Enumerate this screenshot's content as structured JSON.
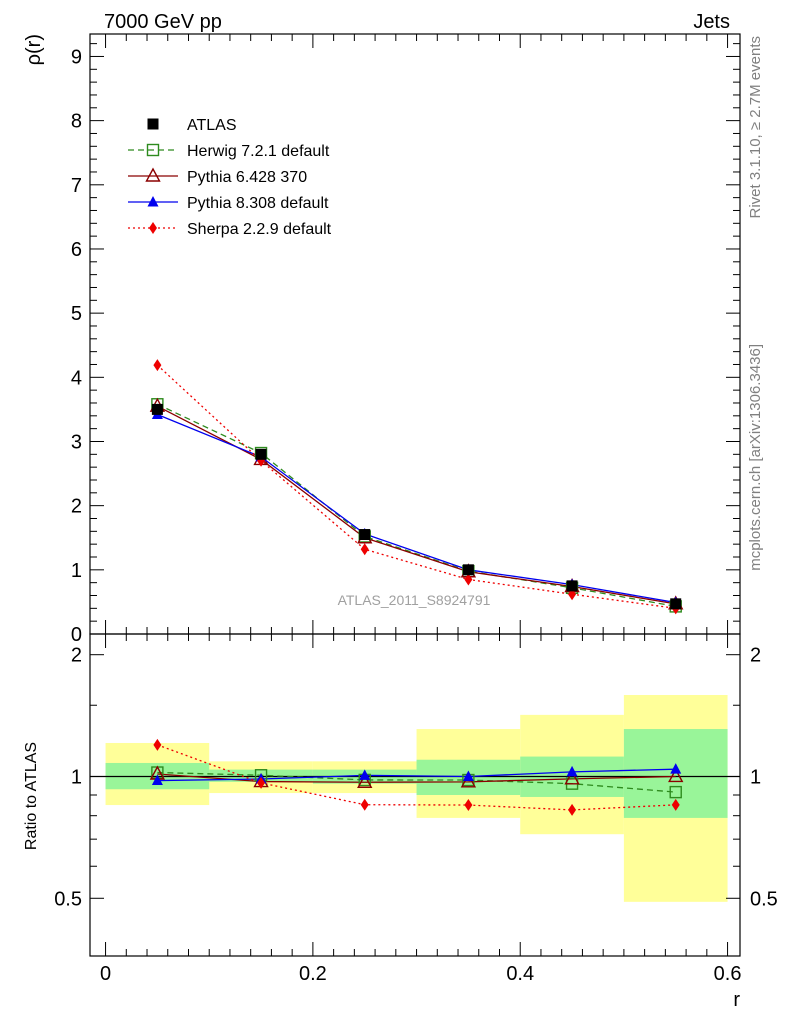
{
  "header": {
    "left": "7000 GeV pp",
    "right": "Jets"
  },
  "side_text": {
    "top": "Rivet 3.1.10, ≥ 2.7M events",
    "bottom": "mcplots.cern.ch [arXiv:1306.3436]"
  },
  "watermark": "ATLAS_2011_S8924791",
  "chart_data": {
    "type": "line",
    "top_panel": {
      "ylabel": "ρ(r)",
      "ylim": [
        0,
        9.35
      ],
      "yticks": [
        0,
        1,
        2,
        3,
        4,
        5,
        6,
        7,
        8,
        9
      ]
    },
    "ratio_panel": {
      "ylabel": "Ratio to ATLAS",
      "ylim": [
        0.36,
        2.25
      ],
      "yticks": [
        0.5,
        1,
        2
      ],
      "yscale": "log",
      "band_inner": [
        [
          0.93,
          1.08
        ],
        [
          0.97,
          1.04
        ],
        [
          0.96,
          1.04
        ],
        [
          0.9,
          1.1
        ],
        [
          0.89,
          1.12
        ],
        [
          0.79,
          1.31
        ]
      ],
      "band_outer": [
        [
          0.85,
          1.21
        ],
        [
          0.91,
          1.09
        ],
        [
          0.91,
          1.09
        ],
        [
          0.79,
          1.31
        ],
        [
          0.72,
          1.42
        ],
        [
          0.49,
          1.59
        ]
      ]
    },
    "xlabel": "r",
    "xlim": [
      -0.015,
      0.612
    ],
    "xticks": [
      0,
      0.2,
      0.4,
      0.6
    ],
    "x": [
      0.05,
      0.15,
      0.25,
      0.35,
      0.45,
      0.55
    ],
    "x_edges": [
      0,
      0.1,
      0.2,
      0.3,
      0.4,
      0.5,
      0.6
    ],
    "data": {
      "name": "ATLAS",
      "values": [
        3.5,
        2.8,
        1.55,
        1.0,
        0.75,
        0.47
      ]
    },
    "series": [
      {
        "name": "Herwig 7.2.1 default",
        "color": "#2e8b1e",
        "dash": "6,4",
        "marker": "open-square",
        "values": [
          3.58,
          2.82,
          1.52,
          0.98,
          0.72,
          0.43
        ]
      },
      {
        "name": "Pythia 6.428 370",
        "color": "#8b0000",
        "dash": "",
        "marker": "open-triangle",
        "values": [
          3.55,
          2.72,
          1.5,
          0.97,
          0.74,
          0.47
        ]
      },
      {
        "name": "Pythia 8.308 default",
        "color": "#0000ee",
        "dash": "",
        "marker": "filled-triangle",
        "values": [
          3.42,
          2.76,
          1.56,
          1.0,
          0.77,
          0.49
        ]
      },
      {
        "name": "Sherpa 2.2.9 default",
        "color": "#ee0000",
        "dash": "2,3",
        "marker": "filled-diamond",
        "values": [
          4.19,
          2.7,
          1.32,
          0.85,
          0.62,
          0.4
        ]
      }
    ],
    "legend_position": "top-left",
    "legend_entries": [
      {
        "name": "ATLAS",
        "color": "#000000",
        "marker": "filled-square",
        "dash": "none"
      },
      {
        "name": "Herwig 7.2.1 default",
        "color": "#2e8b1e",
        "marker": "open-square",
        "dash": "6,4"
      },
      {
        "name": "Pythia 6.428 370",
        "color": "#8b0000",
        "marker": "open-triangle",
        "dash": ""
      },
      {
        "name": "Pythia 8.308 default",
        "color": "#0000ee",
        "marker": "filled-triangle",
        "dash": ""
      },
      {
        "name": "Sherpa 2.2.9 default",
        "color": "#ee0000",
        "marker": "filled-diamond",
        "dash": "2,3"
      }
    ],
    "band_colors": {
      "inner": "#99f599",
      "outer": "#ffff99"
    }
  }
}
